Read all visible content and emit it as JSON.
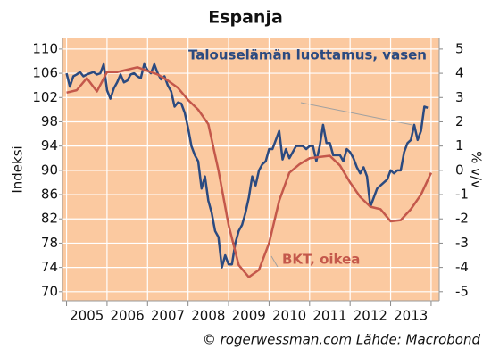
{
  "chart_data": {
    "type": "line",
    "title": "Espanja",
    "ylabel": "Indeksi",
    "y2label": "% v/v",
    "source": "© rogerwessman.com Lähde: Macrobond",
    "xlim": [
      2004.9,
      2014.2
    ],
    "xticks": [
      {
        "value": 2005.5,
        "label": "2005"
      },
      {
        "value": 2006.5,
        "label": "2006"
      },
      {
        "value": 2007.5,
        "label": "2007"
      },
      {
        "value": 2008.5,
        "label": "2008"
      },
      {
        "value": 2009.5,
        "label": "2009"
      },
      {
        "value": 2010.5,
        "label": "2010"
      },
      {
        "value": 2011.5,
        "label": "2011"
      },
      {
        "value": 2012.5,
        "label": "2012"
      },
      {
        "value": 2013.5,
        "label": "2013"
      }
    ],
    "xgrid": [
      2005,
      2006,
      2007,
      2008,
      2009,
      2010,
      2011,
      2012,
      2013,
      2014
    ],
    "ylim": [
      68.5,
      111.75
    ],
    "yticks": [
      70,
      74,
      78,
      82,
      86,
      90,
      94,
      98,
      102,
      106,
      110
    ],
    "y2lim": [
      -5.375,
      5.4375
    ],
    "y2ticks": [
      -5,
      -4,
      -3,
      -2,
      -1,
      0,
      1,
      2,
      3,
      4,
      5
    ],
    "grid": true,
    "series": [
      {
        "name": "Talouselämän luottamus, vasen",
        "color": "#2b4a80",
        "axis": "y",
        "x": [
          2005.0,
          2005.083,
          2005.167,
          2005.25,
          2005.333,
          2005.417,
          2005.5,
          2005.583,
          2005.667,
          2005.75,
          2005.833,
          2005.917,
          2006.0,
          2006.083,
          2006.167,
          2006.25,
          2006.333,
          2006.417,
          2006.5,
          2006.583,
          2006.667,
          2006.75,
          2006.833,
          2006.917,
          2007.0,
          2007.083,
          2007.167,
          2007.25,
          2007.333,
          2007.417,
          2007.5,
          2007.583,
          2007.667,
          2007.75,
          2007.833,
          2007.917,
          2008.0,
          2008.083,
          2008.167,
          2008.25,
          2008.333,
          2008.417,
          2008.5,
          2008.583,
          2008.667,
          2008.75,
          2008.833,
          2008.917,
          2009.0,
          2009.083,
          2009.167,
          2009.25,
          2009.333,
          2009.417,
          2009.5,
          2009.583,
          2009.667,
          2009.75,
          2009.833,
          2009.917,
          2010.0,
          2010.083,
          2010.167,
          2010.25,
          2010.333,
          2010.417,
          2010.5,
          2010.583,
          2010.667,
          2010.75,
          2010.833,
          2010.917,
          2011.0,
          2011.083,
          2011.167,
          2011.25,
          2011.333,
          2011.417,
          2011.5,
          2011.583,
          2011.667,
          2011.75,
          2011.833,
          2011.917,
          2012.0,
          2012.083,
          2012.167,
          2012.25,
          2012.333,
          2012.417,
          2012.5,
          2012.583,
          2012.667,
          2012.75,
          2012.833,
          2012.917,
          2013.0,
          2013.083,
          2013.167,
          2013.25,
          2013.333,
          2013.417,
          2013.5,
          2013.583,
          2013.667,
          2013.75,
          2013.833,
          2013.917
        ],
        "values": [
          106,
          103.8,
          105.5,
          105.8,
          106.2,
          105.5,
          105.8,
          106,
          106.2,
          105.8,
          106,
          107.5,
          103.2,
          101.8,
          103.5,
          104.5,
          105.8,
          104.5,
          104.8,
          105.8,
          106,
          105.5,
          105.2,
          107.5,
          106.5,
          106,
          107.5,
          106,
          105,
          105.5,
          104,
          103,
          100.5,
          101.2,
          101,
          99.5,
          97,
          94,
          92.5,
          91.5,
          87,
          89,
          85,
          83,
          80,
          79,
          74,
          76,
          74.5,
          74.5,
          78,
          80,
          81,
          83,
          85.5,
          89,
          87.5,
          90,
          91,
          91.5,
          93.5,
          93.5,
          95,
          96.5,
          91.8,
          93.5,
          92,
          93,
          94,
          94,
          94,
          93.5,
          94,
          94,
          91.5,
          94,
          97.5,
          94.5,
          94.5,
          92.5,
          92.5,
          92.5,
          91.5,
          93.5,
          93,
          92,
          90.5,
          89.5,
          90.5,
          89,
          84,
          85.5,
          87,
          87.5,
          88,
          88.5,
          90,
          89.5,
          90,
          90,
          93,
          94.5,
          95,
          97.5,
          95,
          96.5,
          100.5,
          100.3
        ]
      },
      {
        "name": "BKT, oikea",
        "color": "#c4584b",
        "axis": "y2",
        "x": [
          2005.0,
          2005.25,
          2005.5,
          2005.75,
          2006.0,
          2006.25,
          2006.5,
          2006.75,
          2007.0,
          2007.25,
          2007.5,
          2007.75,
          2008.0,
          2008.25,
          2008.5,
          2008.75,
          2009.0,
          2009.25,
          2009.5,
          2009.75,
          2010.0,
          2010.25,
          2010.5,
          2010.75,
          2011.0,
          2011.25,
          2011.5,
          2011.75,
          2012.0,
          2012.25,
          2012.5,
          2012.75,
          2013.0,
          2013.25,
          2013.5,
          2013.75,
          2014.0
        ],
        "values": [
          3.2,
          3.3,
          3.8,
          3.25,
          4.05,
          4.05,
          4.15,
          4.25,
          4.1,
          3.95,
          3.7,
          3.4,
          2.9,
          2.5,
          1.9,
          0,
          -2.25,
          -3.9,
          -4.4,
          -4.1,
          -3.0,
          -1.25,
          -0.1,
          0.25,
          0.5,
          0.55,
          0.6,
          0.2,
          -0.5,
          -1.1,
          -1.5,
          -1.6,
          -2.1,
          -2.05,
          -1.6,
          -1.0,
          -0.1
        ]
      }
    ]
  }
}
